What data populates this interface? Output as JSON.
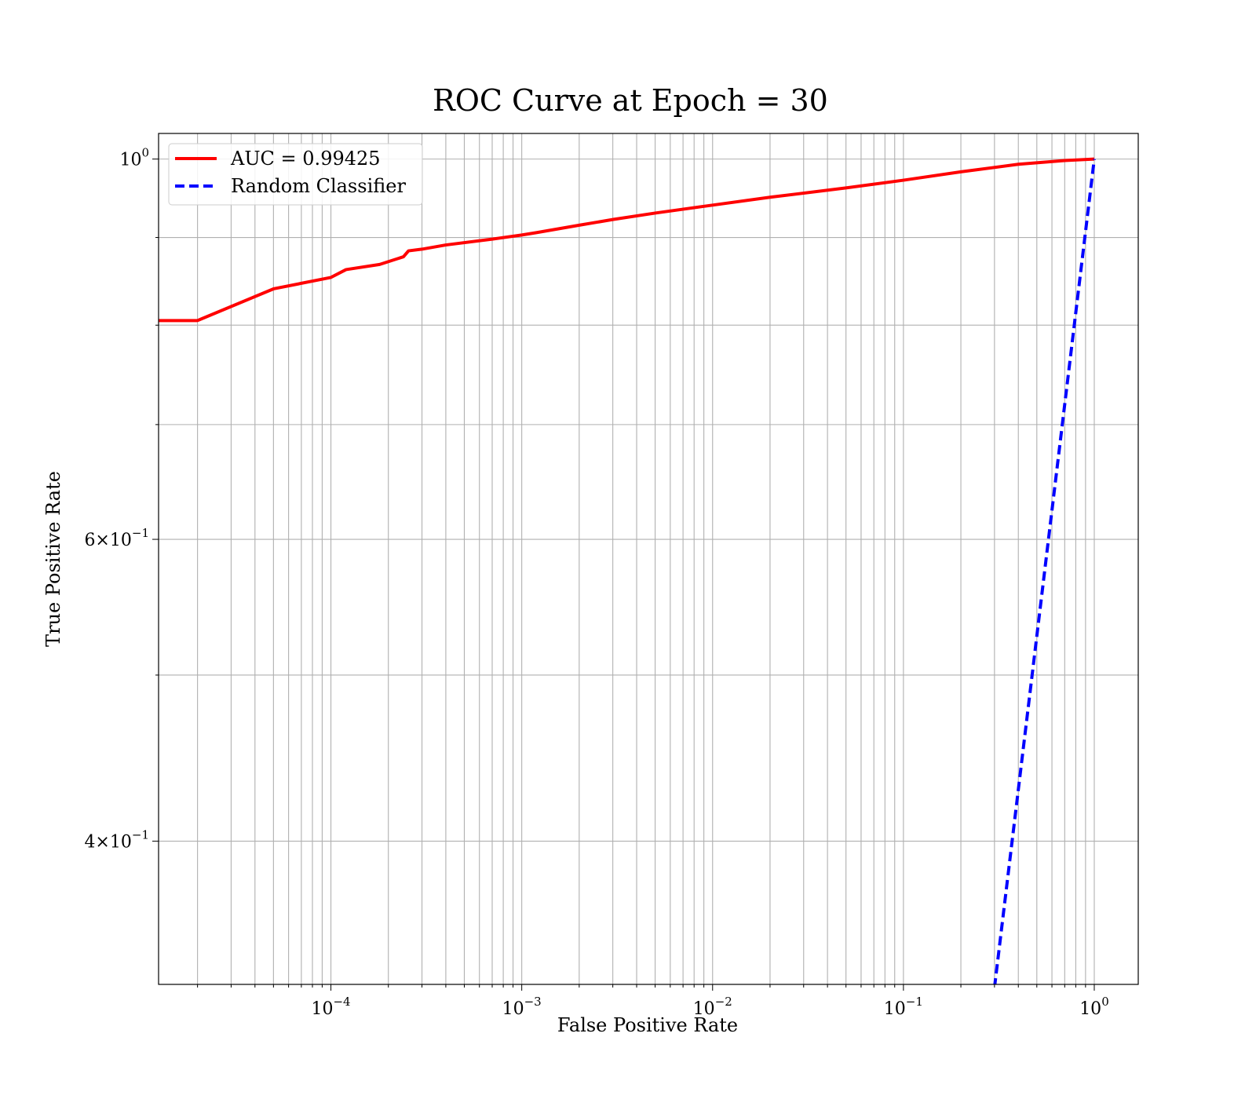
{
  "chart_data": {
    "type": "line",
    "title": "ROC Curve at Epoch = 30",
    "xlabel": "False Positive Rate",
    "ylabel": "True Positive Rate",
    "x_scale": "log",
    "y_scale": "log",
    "xlim": [
      1.25e-05,
      1.7
    ],
    "ylim": [
      0.33,
      1.035
    ],
    "grid": "on (major and minor)",
    "legend_placement": "top-left",
    "x_ticks": [
      {
        "value": 0.0001,
        "base": "10",
        "exp": "−4"
      },
      {
        "value": 0.001,
        "base": "10",
        "exp": "−3"
      },
      {
        "value": 0.01,
        "base": "10",
        "exp": "−2"
      },
      {
        "value": 0.1,
        "base": "10",
        "exp": "−1"
      },
      {
        "value": 1,
        "base": "10",
        "exp": "0"
      }
    ],
    "y_ticks": [
      {
        "value": 1.0,
        "mant": "",
        "base": "10",
        "exp": "0"
      },
      {
        "value": 0.6,
        "mant": "6×",
        "base": "10",
        "exp": "−1"
      },
      {
        "value": 0.4,
        "mant": "4×",
        "base": "10",
        "exp": "−1"
      }
    ],
    "y_minor_ticks": [
      0.5,
      0.7,
      0.8,
      0.9
    ],
    "series": [
      {
        "name": "AUC = 0.99425",
        "color": "#ff0000",
        "style": "solid",
        "points": [
          [
            1.25e-05,
            0.805
          ],
          [
            2e-05,
            0.805
          ],
          [
            5e-05,
            0.84
          ],
          [
            0.0001,
            0.853
          ],
          [
            0.00012,
            0.862
          ],
          [
            0.00018,
            0.868
          ],
          [
            0.00024,
            0.877
          ],
          [
            0.000255,
            0.884
          ],
          [
            0.0003,
            0.886
          ],
          [
            0.0004,
            0.891
          ],
          [
            0.0007,
            0.898
          ],
          [
            0.001,
            0.903
          ],
          [
            0.0012,
            0.906
          ],
          [
            0.002,
            0.915
          ],
          [
            0.003,
            0.922
          ],
          [
            0.005,
            0.93
          ],
          [
            0.01,
            0.94
          ],
          [
            0.02,
            0.95
          ],
          [
            0.05,
            0.962
          ],
          [
            0.1,
            0.972
          ],
          [
            0.2,
            0.983
          ],
          [
            0.4,
            0.993
          ],
          [
            0.7,
            0.998
          ],
          [
            1.0,
            1.0
          ]
        ]
      },
      {
        "name": "Random Classifier",
        "color": "#0000ff",
        "style": "dashed",
        "points": [
          [
            0.3,
            0.3
          ],
          [
            1.0,
            1.0
          ]
        ]
      }
    ]
  }
}
